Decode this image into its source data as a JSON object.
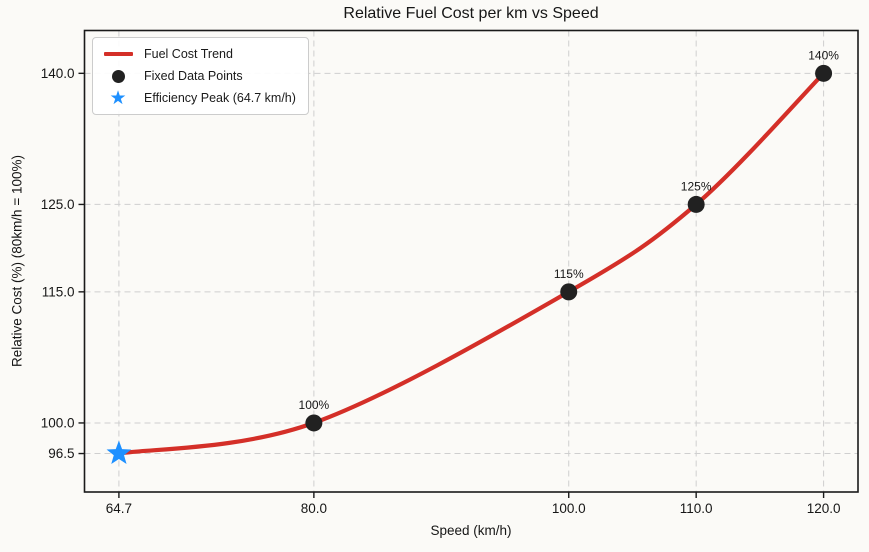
{
  "chart_data": {
    "type": "line",
    "title": "Relative Fuel Cost per km vs Speed",
    "xlabel": "Speed (km/h)",
    "ylabel": "Relative Cost (%) (80km/h = 100%)",
    "xlim": [
      62.0,
      122.7
    ],
    "ylim": [
      92.1,
      144.9
    ],
    "grid": true,
    "grid_style": "dashed",
    "x_ticks": [
      {
        "v": 64.7,
        "label": "64.7"
      },
      {
        "v": 80.0,
        "label": "80.0"
      },
      {
        "v": 100.0,
        "label": "100.0"
      },
      {
        "v": 110.0,
        "label": "110.0"
      },
      {
        "v": 120.0,
        "label": "120.0"
      }
    ],
    "y_ticks": [
      {
        "v": 96.5,
        "label": "96.5"
      },
      {
        "v": 100.0,
        "label": "100.0"
      },
      {
        "v": 115.0,
        "label": "115.0"
      },
      {
        "v": 125.0,
        "label": "125.0"
      },
      {
        "v": 140.0,
        "label": "140.0"
      }
    ],
    "series": [
      {
        "name": "Fuel Cost Trend",
        "kind": "line",
        "color": "#d42f28",
        "line_width": 4.2,
        "x": [
          64.7,
          80,
          100,
          110,
          120
        ],
        "y": [
          96.5,
          100,
          115,
          125,
          140
        ]
      },
      {
        "name": "Fixed Data Points",
        "kind": "scatter",
        "marker": "circle",
        "color": "#212121",
        "points": [
          {
            "x": 80,
            "y": 100,
            "label": "100%"
          },
          {
            "x": 100,
            "y": 115,
            "label": "115%"
          },
          {
            "x": 110,
            "y": 125,
            "label": "125%"
          },
          {
            "x": 120,
            "y": 140,
            "label": "140%"
          }
        ]
      },
      {
        "name": "Efficiency Peak (64.7 km/h)",
        "kind": "scatter",
        "marker": "star",
        "color": "#1e90ff",
        "points": [
          {
            "x": 64.7,
            "y": 96.5,
            "label": ""
          }
        ]
      }
    ],
    "legend": {
      "position": "upper-left",
      "items": [
        {
          "label": "Fuel Cost Trend",
          "swatch": "line"
        },
        {
          "label": "Fixed Data Points",
          "swatch": "circle"
        },
        {
          "label": "Efficiency Peak (64.7 km/h)",
          "swatch": "star"
        }
      ]
    },
    "style": {
      "background": "#fbfaf7",
      "grid_color": "#cfcfcf",
      "spine_color": "#1a1a1a",
      "text_color": "#161616",
      "tick_font_size": 13.5,
      "annotation_font_size": 12
    }
  }
}
